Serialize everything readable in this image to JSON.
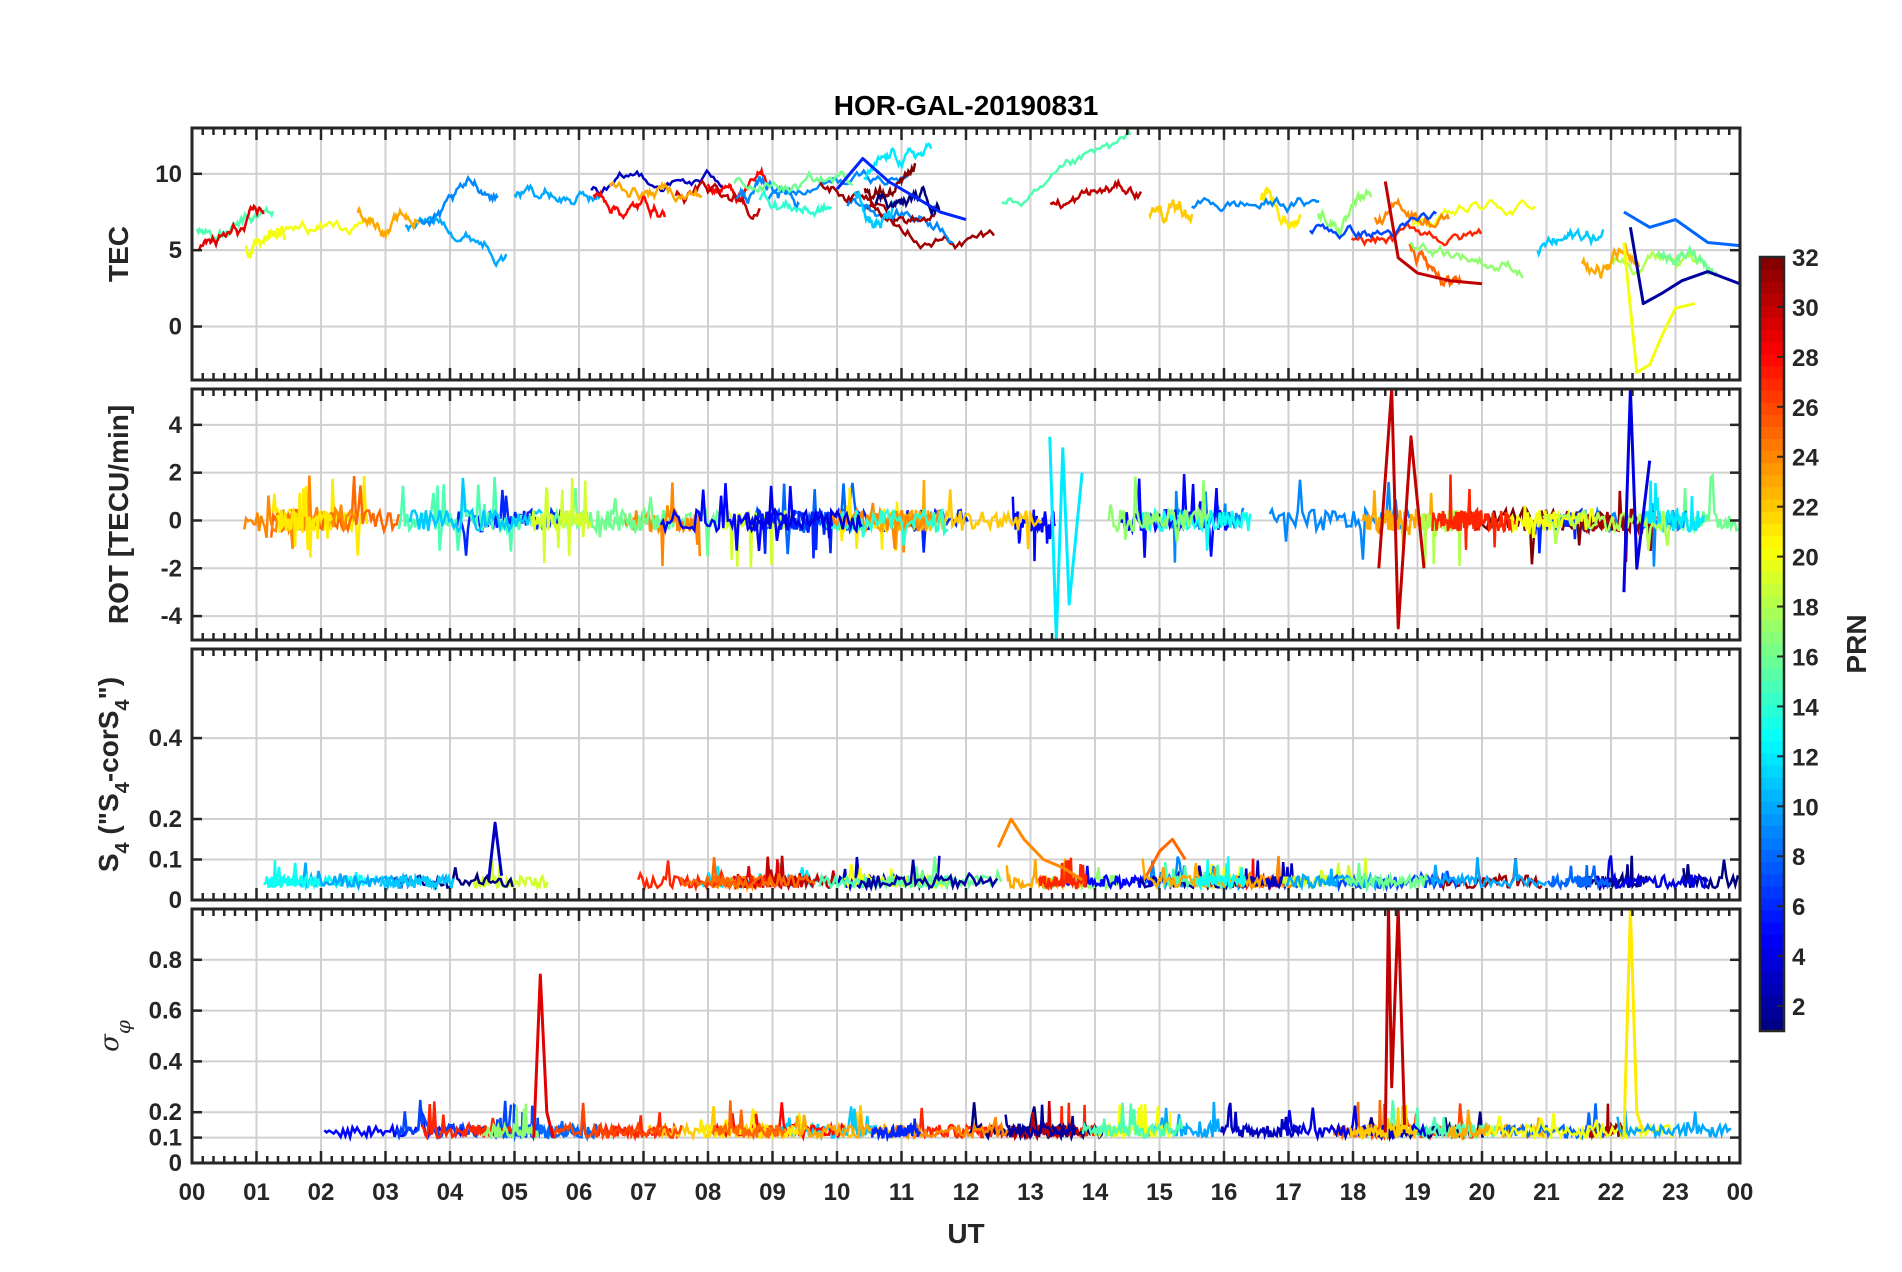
{
  "chart_data": {
    "type": "line",
    "title": "HOR-GAL-20190831",
    "xlabel": "UT",
    "xlim": [
      0,
      24
    ],
    "x_tick_values": [
      0,
      1,
      2,
      3,
      4,
      5,
      6,
      7,
      8,
      9,
      10,
      11,
      12,
      13,
      14,
      15,
      16,
      17,
      18,
      19,
      20,
      21,
      22,
      23,
      24
    ],
    "x_tick_labels": [
      "00",
      "01",
      "02",
      "03",
      "04",
      "05",
      "06",
      "07",
      "08",
      "09",
      "10",
      "11",
      "12",
      "13",
      "14",
      "15",
      "16",
      "17",
      "18",
      "19",
      "20",
      "21",
      "22",
      "23",
      "00"
    ],
    "grid": true,
    "colorbar": {
      "label": "PRN",
      "range": [
        1,
        32
      ],
      "tick_values": [
        2,
        4,
        6,
        8,
        10,
        12,
        14,
        16,
        18,
        20,
        22,
        24,
        26,
        28,
        30,
        32
      ],
      "tick_labels": [
        "2",
        "4",
        "6",
        "8",
        "10",
        "12",
        "14",
        "16",
        "18",
        "20",
        "22",
        "24",
        "26",
        "28",
        "30",
        "32"
      ],
      "colormap": "jet"
    },
    "panels": [
      {
        "id": "tec",
        "ylabel": "TEC",
        "ylim": [
          -3.5,
          13
        ],
        "y_tick_values": [
          0,
          5,
          10
        ],
        "y_tick_labels": [
          "0",
          "5",
          "10"
        ],
        "series": [
          {
            "prn": 20,
            "name": "PRN 20",
            "x": [
              22.2,
              22.4,
              22.6,
              22.8,
              23.0,
              23.3
            ],
            "values": [
              5.5,
              -3.0,
              -2.5,
              -0.5,
              1.2,
              1.5
            ]
          },
          {
            "prn": 2,
            "name": "PRN 2",
            "x": [
              22.3,
              22.5,
              22.8,
              23.1,
              23.5,
              24.0
            ],
            "values": [
              6.5,
              1.5,
              2.2,
              3.0,
              3.6,
              2.8
            ]
          },
          {
            "prn": 8,
            "name": "PRN 8",
            "x": [
              22.2,
              22.6,
              23.0,
              23.5,
              24.0
            ],
            "values": [
              7.5,
              6.5,
              7.0,
              5.5,
              5.3
            ]
          },
          {
            "prn": 30,
            "name": "PRN 30",
            "x": [
              18.5,
              18.7,
              19.0,
              19.5,
              20.0
            ],
            "values": [
              9.5,
              4.5,
              3.5,
              3.0,
              2.8
            ]
          },
          {
            "prn": 6,
            "name": "PRN 6",
            "x": [
              10.0,
              10.4,
              10.8,
              11.2,
              11.6,
              12.0
            ],
            "values": [
              9.0,
              11.0,
              9.5,
              8.5,
              7.5,
              7.0
            ]
          }
        ]
      },
      {
        "id": "rot",
        "ylabel": "ROT [TECU/min]",
        "ylim": [
          -5,
          5.5
        ],
        "y_tick_values": [
          -4,
          -2,
          0,
          2,
          4
        ],
        "y_tick_labels": [
          "-4",
          "-2",
          "0",
          "2",
          "4"
        ],
        "series": [
          {
            "prn": 30,
            "name": "PRN 30",
            "x": [
              18.4,
              18.6,
              18.7,
              18.9,
              19.1
            ],
            "values": [
              -2.0,
              5.5,
              -4.5,
              3.5,
              -2.0
            ]
          },
          {
            "prn": 12,
            "name": "PRN 12",
            "x": [
              13.3,
              13.4,
              13.5,
              13.6,
              13.8
            ],
            "values": [
              3.5,
              -5.0,
              3.0,
              -3.5,
              2.0
            ]
          },
          {
            "prn": 4,
            "name": "PRN 4",
            "x": [
              22.2,
              22.3,
              22.4,
              22.6
            ],
            "values": [
              -3.0,
              5.5,
              -2.0,
              2.5
            ]
          }
        ]
      },
      {
        "id": "s4",
        "ylabel": "S4 (\"S4-corS4\")",
        "ylabel_parts": [
          "S",
          "4",
          " (\"S",
          "4",
          "-corS",
          "4",
          "\")"
        ],
        "ylim": [
          0,
          0.62
        ],
        "y_tick_values": [
          0,
          0.1,
          0.2,
          0.4
        ],
        "y_tick_labels": [
          "0",
          "0.1",
          "0.2",
          "0.4"
        ],
        "series": [
          {
            "prn": 24,
            "name": "PRN 24",
            "x": [
              12.5,
              12.7,
              12.9,
              13.2,
              13.5,
              13.8
            ],
            "values": [
              0.13,
              0.2,
              0.15,
              0.1,
              0.08,
              0.05
            ]
          },
          {
            "prn": 25,
            "name": "PRN 25",
            "x": [
              14.8,
              15.0,
              15.2,
              15.4
            ],
            "values": [
              0.06,
              0.12,
              0.15,
              0.1
            ]
          },
          {
            "prn": 3,
            "name": "PRN 3",
            "x": [
              4.6,
              4.7,
              4.8
            ],
            "values": [
              0.05,
              0.19,
              0.06
            ]
          }
        ]
      },
      {
        "id": "sigma",
        "ylabel": "σφ",
        "ylabel_parts": [
          "σ",
          "φ"
        ],
        "ylim": [
          0,
          1.0
        ],
        "y_tick_values": [
          0,
          0.1,
          0.2,
          0.4,
          0.6,
          0.8
        ],
        "y_tick_labels": [
          "0",
          "0.1",
          "0.2",
          "0.4",
          "0.6",
          "0.8"
        ],
        "series": [
          {
            "prn": 30,
            "name": "PRN 30",
            "x": [
              18.5,
              18.55,
              18.6,
              18.7,
              18.8
            ],
            "values": [
              0.12,
              1.0,
              0.3,
              1.0,
              0.15
            ]
          },
          {
            "prn": 29,
            "name": "PRN 29",
            "x": [
              5.3,
              5.4,
              5.5,
              5.6
            ],
            "values": [
              0.1,
              0.74,
              0.2,
              0.1
            ]
          },
          {
            "prn": 21,
            "name": "PRN 21",
            "x": [
              22.2,
              22.3,
              22.4,
              22.5
            ],
            "values": [
              0.1,
              1.0,
              0.2,
              0.12
            ]
          }
        ]
      }
    ]
  }
}
